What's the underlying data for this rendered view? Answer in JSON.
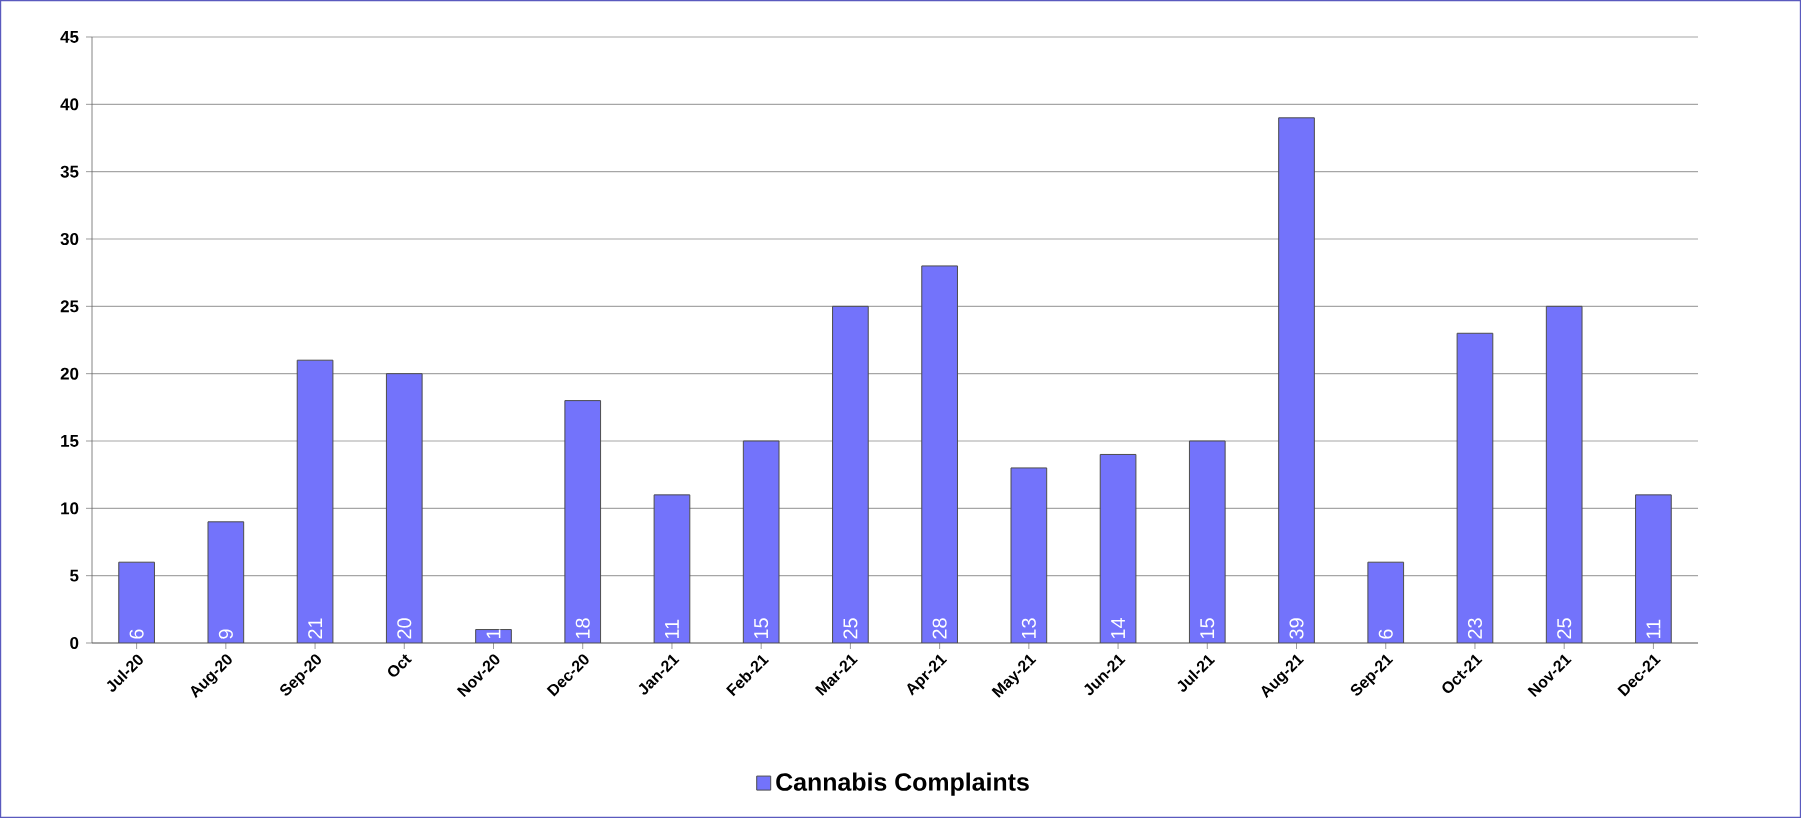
{
  "chart_data": {
    "type": "bar",
    "categories": [
      "Jul-20",
      "Aug-20",
      "Sep-20",
      "Oct",
      "Nov-20",
      "Dec-20",
      "Jan-21",
      "Feb-21",
      "Mar-21",
      "Apr-21",
      "May-21",
      "Jun-21",
      "Jul-21",
      "Aug-21",
      "Sep-21",
      "Oct-21",
      "Nov-21",
      "Dec-21"
    ],
    "series": [
      {
        "name": "Cannabis Complaints",
        "color": "#7373fb",
        "values": [
          6,
          9,
          21,
          20,
          1,
          18,
          11,
          15,
          25,
          28,
          13,
          14,
          15,
          39,
          6,
          23,
          25,
          11
        ]
      }
    ],
    "ylim": [
      0,
      45
    ],
    "yticks": [
      0,
      5,
      10,
      15,
      20,
      25,
      30,
      35,
      40,
      45
    ],
    "grid": "y",
    "legend": "bottom",
    "data_labels": true
  }
}
